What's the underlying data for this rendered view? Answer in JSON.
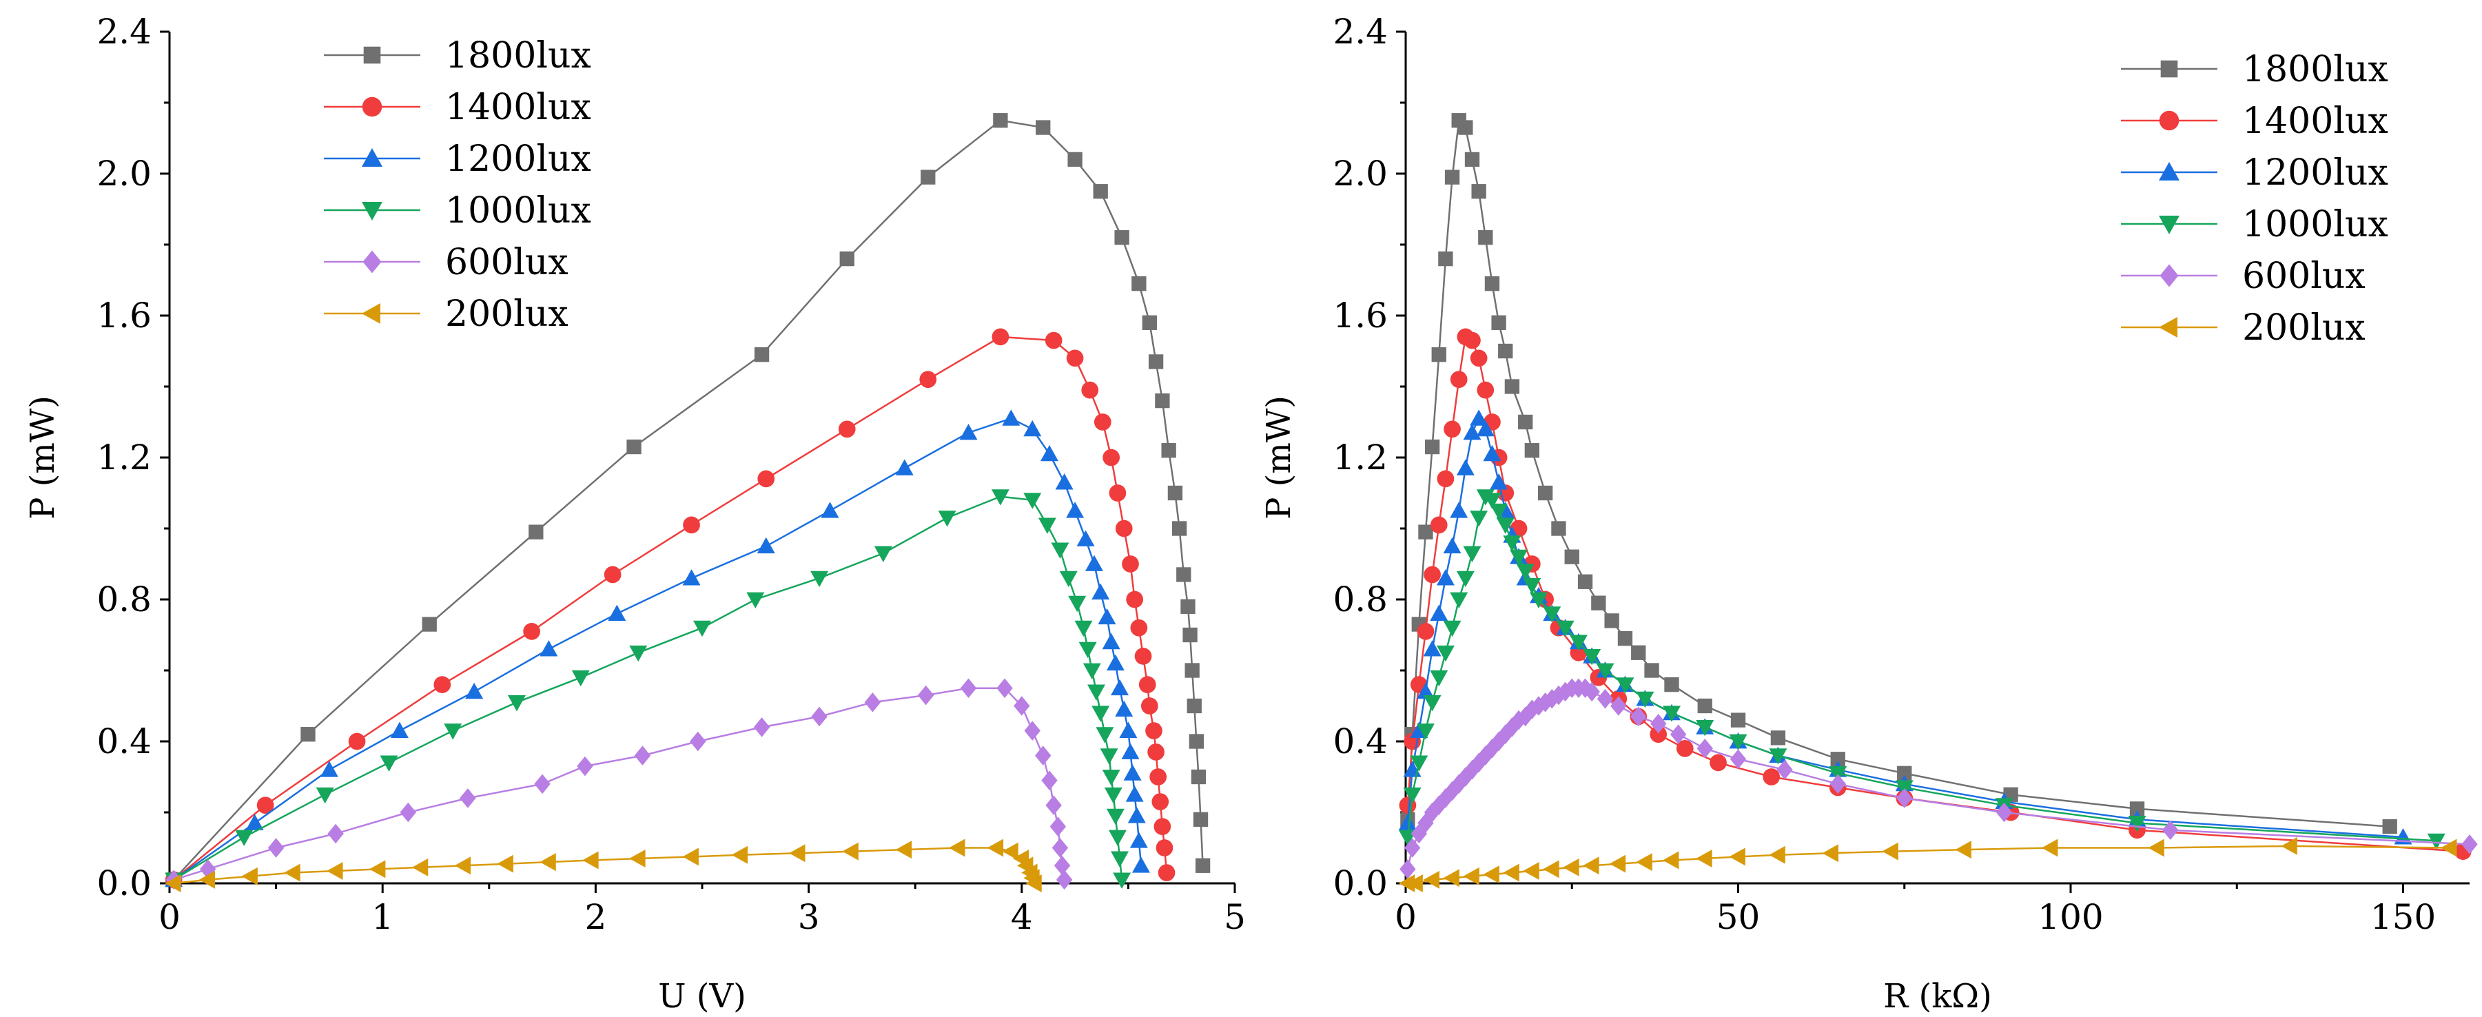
{
  "colors": {
    "1800lux": "#707070",
    "1400lux": "#f03c3c",
    "1200lux": "#1a6fe0",
    "1000lux": "#15a65c",
    "600lux": "#b87ee3",
    "200lux": "#d99a0a"
  },
  "chart_data": [
    {
      "type": "line",
      "title": "",
      "xlabel": "U (V)",
      "ylabel": "P (mW)",
      "xlim": [
        0,
        5
      ],
      "ylim": [
        0,
        2.4
      ],
      "xticks": [
        "0",
        "1",
        "2",
        "3",
        "4",
        "5"
      ],
      "yticks": [
        "0.0",
        "0.4",
        "0.8",
        "1.2",
        "1.6",
        "2.0",
        "2.4"
      ],
      "legend_position": "top-left",
      "series": [
        {
          "name": "1800lux",
          "marker": "square",
          "color": "#707070",
          "x": [
            0.02,
            0.65,
            1.22,
            1.72,
            2.18,
            2.78,
            3.18,
            3.56,
            3.9,
            4.1,
            4.25,
            4.37,
            4.47,
            4.55,
            4.6,
            4.63,
            4.66,
            4.69,
            4.72,
            4.74,
            4.76,
            4.78,
            4.79,
            4.8,
            4.81,
            4.82,
            4.83,
            4.84,
            4.85
          ],
          "y": [
            0.01,
            0.42,
            0.73,
            0.99,
            1.23,
            1.49,
            1.76,
            1.99,
            2.15,
            2.13,
            2.04,
            1.95,
            1.82,
            1.69,
            1.58,
            1.47,
            1.36,
            1.22,
            1.1,
            1.0,
            0.87,
            0.78,
            0.7,
            0.6,
            0.5,
            0.4,
            0.3,
            0.18,
            0.05
          ]
        },
        {
          "name": "1400lux",
          "marker": "circle",
          "color": "#f03c3c",
          "x": [
            0.02,
            0.45,
            0.88,
            1.28,
            1.7,
            2.08,
            2.45,
            2.8,
            3.18,
            3.56,
            3.9,
            4.15,
            4.25,
            4.32,
            4.38,
            4.42,
            4.45,
            4.48,
            4.51,
            4.53,
            4.55,
            4.57,
            4.59,
            4.6,
            4.62,
            4.63,
            4.64,
            4.65,
            4.66,
            4.67,
            4.68
          ],
          "y": [
            0.01,
            0.22,
            0.4,
            0.56,
            0.71,
            0.87,
            1.01,
            1.14,
            1.28,
            1.42,
            1.54,
            1.53,
            1.48,
            1.39,
            1.3,
            1.2,
            1.1,
            1.0,
            0.9,
            0.8,
            0.72,
            0.64,
            0.56,
            0.5,
            0.43,
            0.37,
            0.3,
            0.23,
            0.16,
            0.1,
            0.03
          ]
        },
        {
          "name": "1200lux",
          "marker": "triangle-up",
          "color": "#1a6fe0",
          "x": [
            0.02,
            0.4,
            0.75,
            1.08,
            1.43,
            1.78,
            2.1,
            2.45,
            2.8,
            3.1,
            3.45,
            3.75,
            3.95,
            4.05,
            4.13,
            4.2,
            4.25,
            4.3,
            4.34,
            4.37,
            4.4,
            4.42,
            4.44,
            4.46,
            4.48,
            4.5,
            4.51,
            4.52,
            4.53,
            4.54,
            4.55,
            4.56
          ],
          "y": [
            0.01,
            0.17,
            0.32,
            0.43,
            0.54,
            0.66,
            0.76,
            0.86,
            0.95,
            1.05,
            1.17,
            1.27,
            1.31,
            1.28,
            1.21,
            1.13,
            1.05,
            0.97,
            0.9,
            0.82,
            0.75,
            0.68,
            0.62,
            0.55,
            0.49,
            0.43,
            0.37,
            0.31,
            0.25,
            0.19,
            0.12,
            0.05
          ]
        },
        {
          "name": "1000lux",
          "marker": "triangle-down",
          "color": "#15a65c",
          "x": [
            0.02,
            0.35,
            0.73,
            1.03,
            1.33,
            1.63,
            1.93,
            2.2,
            2.5,
            2.75,
            3.05,
            3.35,
            3.65,
            3.9,
            4.05,
            4.12,
            4.18,
            4.22,
            4.26,
            4.29,
            4.31,
            4.33,
            4.35,
            4.37,
            4.39,
            4.41,
            4.42,
            4.43,
            4.44,
            4.45,
            4.46,
            4.47
          ],
          "y": [
            0.01,
            0.13,
            0.25,
            0.34,
            0.43,
            0.51,
            0.58,
            0.65,
            0.72,
            0.8,
            0.86,
            0.93,
            1.03,
            1.09,
            1.08,
            1.01,
            0.94,
            0.86,
            0.79,
            0.72,
            0.66,
            0.6,
            0.54,
            0.48,
            0.42,
            0.36,
            0.3,
            0.25,
            0.19,
            0.13,
            0.07,
            0.01
          ]
        },
        {
          "name": "600lux",
          "marker": "diamond",
          "color": "#b87ee3",
          "x": [
            0.02,
            0.18,
            0.5,
            0.78,
            1.12,
            1.4,
            1.75,
            1.95,
            2.22,
            2.48,
            2.78,
            3.05,
            3.3,
            3.55,
            3.75,
            3.92,
            4.0,
            4.05,
            4.1,
            4.13,
            4.15,
            4.17,
            4.18,
            4.19,
            4.2
          ],
          "y": [
            0.01,
            0.04,
            0.1,
            0.14,
            0.2,
            0.24,
            0.28,
            0.33,
            0.36,
            0.4,
            0.44,
            0.47,
            0.51,
            0.53,
            0.55,
            0.55,
            0.5,
            0.43,
            0.36,
            0.29,
            0.22,
            0.16,
            0.1,
            0.05,
            0.01
          ]
        },
        {
          "name": "200lux",
          "marker": "triangle-left",
          "color": "#d99a0a",
          "x": [
            0.02,
            0.18,
            0.38,
            0.58,
            0.78,
            0.98,
            1.18,
            1.38,
            1.58,
            1.78,
            1.98,
            2.2,
            2.45,
            2.68,
            2.95,
            3.2,
            3.45,
            3.7,
            3.88,
            3.95,
            4.0,
            4.02,
            4.04,
            4.05,
            4.06
          ],
          "y": [
            0.0,
            0.01,
            0.02,
            0.03,
            0.035,
            0.04,
            0.045,
            0.05,
            0.055,
            0.06,
            0.065,
            0.07,
            0.075,
            0.08,
            0.085,
            0.09,
            0.095,
            0.1,
            0.1,
            0.09,
            0.07,
            0.05,
            0.03,
            0.015,
            0.0
          ]
        }
      ]
    },
    {
      "type": "line",
      "title": "",
      "xlabel": "R (kΩ)",
      "ylabel": "P (mW)",
      "xlim": [
        0,
        160
      ],
      "ylim": [
        0,
        2.4
      ],
      "xticks": [
        "0",
        "50",
        "100",
        "150"
      ],
      "yticks": [
        "0.0",
        "0.4",
        "0.8",
        "1.2",
        "1.6",
        "2.0",
        "2.4"
      ],
      "legend_position": "top-right",
      "series": [
        {
          "name": "1800lux",
          "marker": "square",
          "color": "#707070",
          "x": [
            0.3,
            1.0,
            2.0,
            3.0,
            4.0,
            5.0,
            6.0,
            7.0,
            8.0,
            9.0,
            10.0,
            11.0,
            12.0,
            13.0,
            14.0,
            15.0,
            16.0,
            18.0,
            19.0,
            21.0,
            23.0,
            25.0,
            27.0,
            29.0,
            31.0,
            33.0,
            35.0,
            37.0,
            40.0,
            45.0,
            50.0,
            56.0,
            65.0,
            75.0,
            91.0,
            110.0,
            148.0
          ],
          "y": [
            0.18,
            0.42,
            0.73,
            0.99,
            1.23,
            1.49,
            1.76,
            1.99,
            2.15,
            2.13,
            2.04,
            1.95,
            1.82,
            1.69,
            1.58,
            1.5,
            1.4,
            1.3,
            1.22,
            1.1,
            1.0,
            0.92,
            0.85,
            0.79,
            0.74,
            0.69,
            0.65,
            0.6,
            0.56,
            0.5,
            0.46,
            0.41,
            0.35,
            0.31,
            0.25,
            0.21,
            0.16
          ]
        },
        {
          "name": "1400lux",
          "marker": "circle",
          "color": "#f03c3c",
          "x": [
            0.3,
            1.0,
            2.0,
            3.0,
            4.0,
            5.0,
            6.0,
            7.0,
            8.0,
            9.0,
            10.0,
            11.0,
            12.0,
            13.0,
            14.0,
            15.0,
            17.0,
            19.0,
            21.0,
            23.0,
            26.0,
            29.0,
            32.0,
            35.0,
            38.0,
            42.0,
            47.0,
            55.0,
            65.0,
            75.0,
            91.0,
            110.0,
            159.0
          ],
          "y": [
            0.22,
            0.4,
            0.56,
            0.71,
            0.87,
            1.01,
            1.14,
            1.28,
            1.42,
            1.54,
            1.53,
            1.48,
            1.39,
            1.3,
            1.2,
            1.1,
            1.0,
            0.9,
            0.8,
            0.72,
            0.65,
            0.58,
            0.52,
            0.47,
            0.42,
            0.38,
            0.34,
            0.3,
            0.27,
            0.24,
            0.2,
            0.15,
            0.09
          ]
        },
        {
          "name": "1200lux",
          "marker": "triangle-up",
          "color": "#1a6fe0",
          "x": [
            0.3,
            1.0,
            2.0,
            3.0,
            4.0,
            5.0,
            6.0,
            7.0,
            8.0,
            9.0,
            10.0,
            11.0,
            12.0,
            13.0,
            14.0,
            15.0,
            16.0,
            17.0,
            18.0,
            20.0,
            22.0,
            24.0,
            26.0,
            28.0,
            30.0,
            33.0,
            36.0,
            40.0,
            45.0,
            50.0,
            56.0,
            65.0,
            75.0,
            90.0,
            110.0,
            150.0
          ],
          "y": [
            0.17,
            0.32,
            0.43,
            0.54,
            0.66,
            0.76,
            0.86,
            0.95,
            1.05,
            1.17,
            1.27,
            1.31,
            1.28,
            1.21,
            1.13,
            1.05,
            0.98,
            0.92,
            0.86,
            0.81,
            0.76,
            0.72,
            0.68,
            0.64,
            0.6,
            0.56,
            0.52,
            0.48,
            0.44,
            0.4,
            0.36,
            0.32,
            0.28,
            0.23,
            0.18,
            0.13
          ]
        },
        {
          "name": "1000lux",
          "marker": "triangle-down",
          "color": "#15a65c",
          "x": [
            0.3,
            1.0,
            2.0,
            3.0,
            4.0,
            5.0,
            6.0,
            7.0,
            8.0,
            9.0,
            10.0,
            11.0,
            12.0,
            13.0,
            14.0,
            15.0,
            16.0,
            17.0,
            18.0,
            19.0,
            20.0,
            22.0,
            24.0,
            26.0,
            28.0,
            30.0,
            33.0,
            36.0,
            40.0,
            45.0,
            50.0,
            56.0,
            65.0,
            75.0,
            90.0,
            110.0,
            155.0
          ],
          "y": [
            0.13,
            0.25,
            0.34,
            0.43,
            0.51,
            0.58,
            0.65,
            0.72,
            0.8,
            0.86,
            0.93,
            1.03,
            1.09,
            1.08,
            1.05,
            1.01,
            0.96,
            0.92,
            0.88,
            0.84,
            0.8,
            0.76,
            0.72,
            0.68,
            0.64,
            0.6,
            0.56,
            0.52,
            0.48,
            0.44,
            0.4,
            0.36,
            0.31,
            0.27,
            0.22,
            0.17,
            0.12
          ]
        },
        {
          "name": "600lux",
          "marker": "diamond",
          "color": "#b87ee3",
          "x": [
            0.3,
            1.0,
            2.0,
            3.0,
            4.0,
            5.0,
            6.0,
            7.0,
            8.0,
            9.0,
            10.0,
            11.0,
            12.0,
            13.0,
            14.0,
            15.0,
            16.0,
            17.0,
            18.0,
            19.0,
            20.0,
            21.0,
            22.0,
            23.0,
            24.0,
            25.0,
            26.0,
            27.0,
            28.0,
            30.0,
            32.0,
            35.0,
            38.0,
            41.0,
            45.0,
            50.0,
            57.0,
            65.0,
            75.0,
            90.0,
            115.0,
            160.0
          ],
          "y": [
            0.04,
            0.1,
            0.14,
            0.17,
            0.2,
            0.22,
            0.24,
            0.26,
            0.28,
            0.3,
            0.32,
            0.34,
            0.36,
            0.38,
            0.4,
            0.42,
            0.44,
            0.46,
            0.47,
            0.49,
            0.5,
            0.51,
            0.52,
            0.53,
            0.54,
            0.55,
            0.55,
            0.55,
            0.54,
            0.52,
            0.5,
            0.47,
            0.45,
            0.42,
            0.38,
            0.35,
            0.32,
            0.28,
            0.24,
            0.2,
            0.15,
            0.11
          ]
        },
        {
          "name": "200lux",
          "marker": "triangle-left",
          "color": "#d99a0a",
          "x": [
            0.3,
            1.5,
            4.0,
            7.0,
            10.0,
            13.0,
            16.0,
            19.0,
            22.0,
            25.0,
            28.0,
            32.0,
            36.0,
            40.0,
            45.0,
            50.0,
            56.0,
            64.0,
            73.0,
            84.0,
            97.0,
            113.0,
            133.0,
            157.0
          ],
          "y": [
            0.0,
            0.0,
            0.01,
            0.015,
            0.02,
            0.025,
            0.03,
            0.035,
            0.04,
            0.045,
            0.05,
            0.055,
            0.06,
            0.065,
            0.07,
            0.075,
            0.08,
            0.085,
            0.09,
            0.095,
            0.1,
            0.1,
            0.105,
            0.1
          ]
        }
      ]
    }
  ]
}
